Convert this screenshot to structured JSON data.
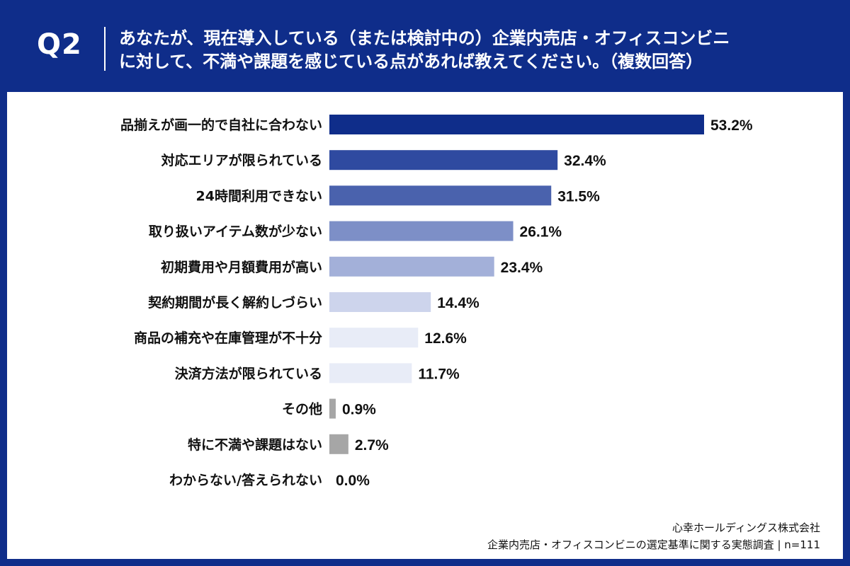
{
  "header": {
    "question_label": "Q2",
    "title_line1": "あなたが、現在導入している（または検討中の）企業内売店・オフィスコンビニ",
    "title_line2": "に対して、不満や課題を感じている点があれば教えてください。（複数回答）"
  },
  "chart_data": {
    "type": "bar",
    "orientation": "horizontal",
    "categories": [
      "品揃えが画一的で自社に合わない",
      "対応エリアが限られている",
      "24時間利用できない",
      "取り扱いアイテム数が少ない",
      "初期費用や月額費用が高い",
      "契約期間が長く解約しづらい",
      "商品の補充や在庫管理が不十分",
      "決済方法が限られている",
      "その他",
      "特に不満や課題はない",
      "わからない/答えられない"
    ],
    "values": [
      53.2,
      32.4,
      31.5,
      26.1,
      23.4,
      14.4,
      12.6,
      11.7,
      0.9,
      2.7,
      0.0
    ],
    "value_labels": [
      "53.2%",
      "32.4%",
      "31.5%",
      "26.1%",
      "23.4%",
      "14.4%",
      "12.6%",
      "11.7%",
      "0.9%",
      "2.7%",
      "0.0%"
    ],
    "colors": [
      "#0f2d8a",
      "#2f4aa0",
      "#4a62ad",
      "#7d8fc7",
      "#a3b0d9",
      "#cdd4ec",
      "#e8ecf7",
      "#e8ecf7",
      "#a6a6a6",
      "#a6a6a6",
      "#a6a6a6"
    ],
    "xlim": [
      0,
      60
    ]
  },
  "footer": {
    "company": "心幸ホールディングス株式会社",
    "survey": "企業内売店・オフィスコンビニの選定基準に関する実態調査 | n=111"
  }
}
